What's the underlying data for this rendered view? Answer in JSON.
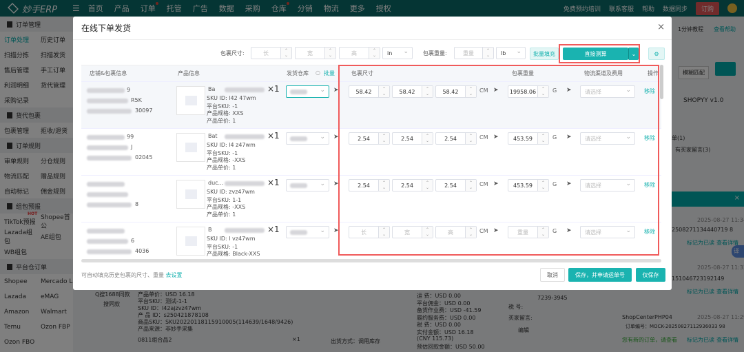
{
  "topbar": {
    "brand": "妙手ERP",
    "nav": [
      "首页",
      "产品",
      "订单",
      "托管",
      "广告",
      "数据",
      "采购",
      "仓库",
      "分销",
      "物流",
      "更多",
      "授权"
    ],
    "right": [
      "免费预约培训",
      "联系客服",
      "帮助",
      "数据同步",
      "订购"
    ]
  },
  "sidebar": {
    "groups": [
      {
        "title": "订单管理",
        "rows": [
          [
            "订单处理",
            "历史订单"
          ],
          [
            "扫描分拣",
            "扫描发货"
          ],
          [
            "售后管理",
            "手工订单"
          ],
          [
            "利润明细",
            "货代管理"
          ],
          [
            "采购记录",
            ""
          ]
        ]
      },
      {
        "title": "货代包裹",
        "rows": [
          [
            "包裹管理",
            "拒收/退货"
          ]
        ]
      },
      {
        "title": "订单规则",
        "rows": [
          [
            "审单规则",
            "分仓规则"
          ],
          [
            "物流匹配",
            "赠品规则"
          ],
          [
            "自动标记",
            "佣金规则"
          ]
        ]
      },
      {
        "title": "组包预报",
        "rows": [
          [
            "TikTok预报",
            "Shopee首公"
          ],
          [
            "Lazada组包",
            "AE组包"
          ],
          [
            "WB组包",
            ""
          ]
        ]
      },
      {
        "title": "平台仓订单",
        "rows": [
          [
            "Shopee",
            "Mercado L"
          ],
          [
            "Lazada",
            "eMAG"
          ],
          [
            "Amazon",
            "Walmart"
          ],
          [
            "Temu",
            "Ozon FBP"
          ],
          [
            "Ozon FBO",
            ""
          ]
        ]
      }
    ],
    "hot_badge": "HOT"
  },
  "background": {
    "help_links": [
      "1分钟教程",
      "查看帮助"
    ],
    "match": "模糊匹配",
    "shop": "SHOPYY v1.0",
    "counts": [
      "单(1)",
      "有买家留言(3)"
    ],
    "notices": [
      {
        "time": "2025-08-27 11:34",
        "order": "2508271134440719 8",
        "actions": [
          "标记为已读",
          "查看详情"
        ]
      },
      {
        "time": "2025-08-27 11:32",
        "order": "151046723192149",
        "actions": [
          "标记为已读",
          "查看详情"
        ]
      },
      {
        "shop": "ShopCenterPHP04",
        "time": "2025-08-27 11:29",
        "order": "订单编号：MOCK-20250827112936033 98",
        "msg": "您有新的订单，请查看",
        "actions": [
          "标记为已读",
          "查看详情"
        ]
      }
    ],
    "product": [
      "Q搜1688同款",
      "搜同款",
      "产品单价：USD 16.18",
      "平台SKU：测试-1-1",
      "SKU ID：l42ajzvz47wm",
      "产 品 ID：s250421878108",
      "商品SKU：SKU20220118115910005(114639/1648/9426)",
      "产品来源：非妙手采集",
      "0811组合品2",
      "×1",
      "出货方式：调用库存"
    ],
    "fees": [
      "运 费：USD 0.00",
      "平台佣金：USD 0.00",
      "备货作业费：USD -41.59",
      "履约服务费：USD 0.00",
      "税 费：USD 0.00",
      "实付金额：USD 16.18",
      "(CNY 115.73)",
      "预估回款金额：USD 50.00"
    ],
    "buyer": [
      "7239-3945",
      "税 号:",
      "买家留言:",
      "编辑"
    ],
    "translate": "译"
  },
  "modal": {
    "title": "在线下单发货",
    "toolbar": {
      "size_label": "包裹尺寸:",
      "len_ph": "长",
      "wid_ph": "宽",
      "hei_ph": "高",
      "size_unit": "in",
      "weight_label": "包裹重量:",
      "weight_ph": "重量",
      "weight_unit": "lb",
      "batch_fill": "批量填充",
      "direct_calc": "直接测算"
    },
    "columns": [
      "店铺&包裹信息",
      "产品信息",
      "发货仓库",
      "批量",
      "包裹尺寸",
      "包裹重量",
      "物流渠道及费用",
      "操作"
    ],
    "rows": [
      {
        "store": [
          "9",
          "R5K",
          "30097"
        ],
        "product": {
          "name": "Ba",
          "sku_id": "SKU ID: l42  47wm",
          "platform_sku": "平台SKU:  -1",
          "spec": "产品规格:  XXS",
          "price": "产品单价: 1"
        },
        "qty": "×1",
        "dims": [
          "58.42",
          "58.42",
          "58.42"
        ],
        "dim_unit": "CM",
        "weight": "19958.06",
        "weight_unit": "G",
        "logistics_ph": "请选择",
        "action": "移除"
      },
      {
        "store": [
          "99",
          "J",
          "02045"
        ],
        "product": {
          "name": "Bat",
          "sku_id": "SKU ID: l4  z47wm",
          "platform_sku": "平台SKU:  -1",
          "spec": "产品规格:  -XXS",
          "price": "产品单价: 1"
        },
        "qty": "×1",
        "dims": [
          "2.54",
          "2.54",
          "2.54"
        ],
        "dim_unit": "CM",
        "weight": "453.59",
        "weight_unit": "G",
        "logistics_ph": "请选择",
        "action": "移除"
      },
      {
        "store": [
          "",
          "",
          "8"
        ],
        "product": {
          "name": "duc...",
          "sku_id": "SKU ID:  zvz47wm",
          "platform_sku": "平台SKU:  1-1",
          "spec": "产品规格:  -XXS",
          "price": "产品单价: 1"
        },
        "qty": "×1",
        "dims": [
          "2.54",
          "2.54",
          "2.54"
        ],
        "dim_unit": "CM",
        "weight": "453.59",
        "weight_unit": "G",
        "logistics_ph": "请选择",
        "action": "移除"
      },
      {
        "store": [
          "",
          "6",
          "4036"
        ],
        "product": {
          "name": "B",
          "sku_id": "SKU ID: l  vz47wm",
          "platform_sku": "平台SKU:  -1",
          "spec": "产品规格: Black-XXS",
          "price": ""
        },
        "qty": "×1",
        "dims_ph": [
          "长",
          "宽",
          "高"
        ],
        "dim_unit": "CM",
        "weight_ph": "重量",
        "weight_unit": "G",
        "logistics_ph": "请选择",
        "action": "移除"
      }
    ],
    "footer": {
      "hint": "可自动填充历史包裹的尺寸、重量",
      "hint_link": "去设置",
      "cancel": "取消",
      "save_apply": "保存，并申请运单号",
      "save_only": "仅保存"
    }
  },
  "colors": {
    "brand": "#0b6b68",
    "accent": "#1ab3b0",
    "highlight_box": "#f05a5a",
    "buy": "#e05757"
  }
}
